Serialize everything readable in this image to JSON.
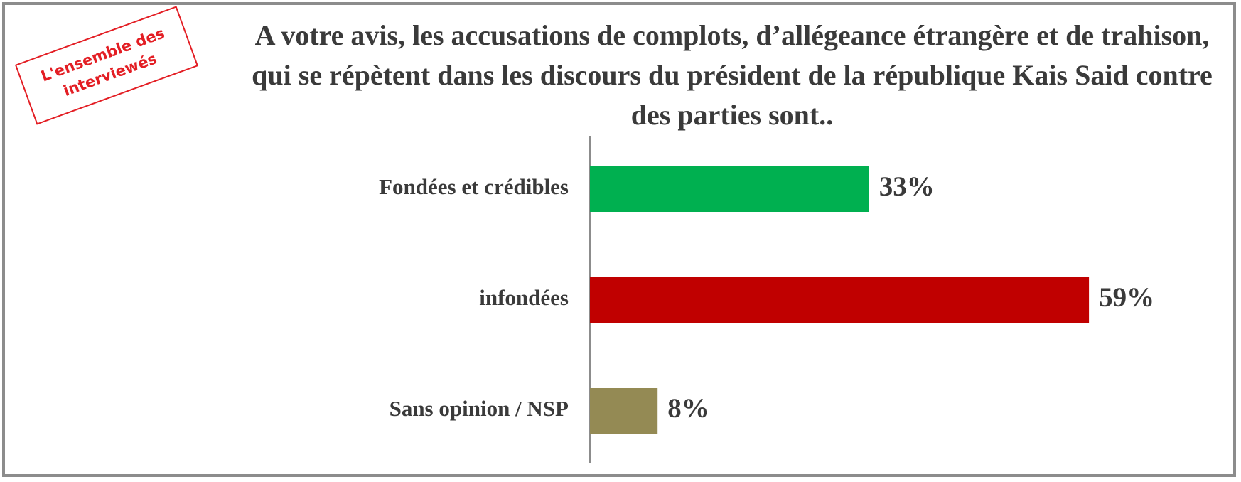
{
  "chart_data": {
    "type": "hbar",
    "title": "A votre avis, les accusations de complots, d’allégeance étrangère et de trahison, qui se répètent dans les discours du président de la république Kais Said contre des parties sont..",
    "stamp": [
      "L'ensemble des",
      "interviewés"
    ],
    "categories": [
      "Fondées et crédibles",
      "infondées",
      "Sans opinion / NSP"
    ],
    "values": [
      33,
      59,
      8
    ],
    "value_labels": [
      "33%",
      "59%",
      "8%"
    ],
    "colors": [
      "#00b050",
      "#c00000",
      "#948a54"
    ]
  }
}
